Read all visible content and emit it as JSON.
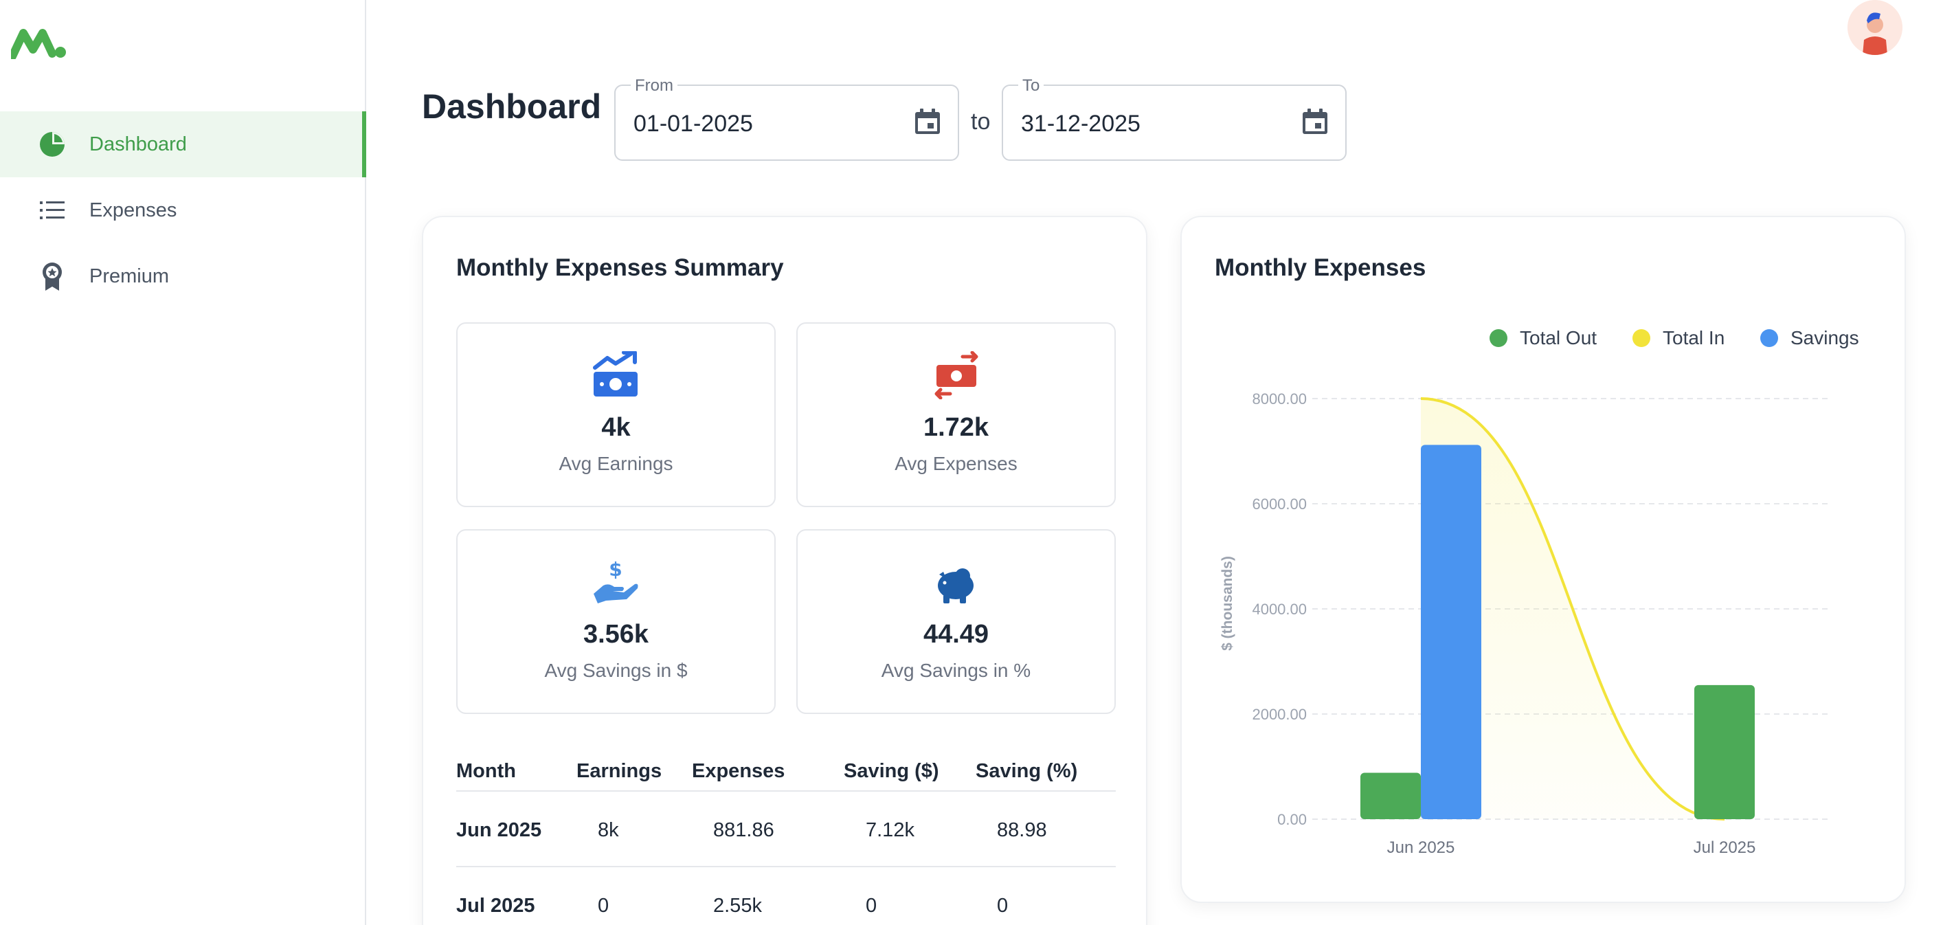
{
  "sidebar": {
    "items": [
      {
        "label": "Dashboard",
        "icon": "pie-chart-icon",
        "active": true
      },
      {
        "label": "Expenses",
        "icon": "list-icon",
        "active": false
      },
      {
        "label": "Premium",
        "icon": "award-icon",
        "active": false
      }
    ]
  },
  "header": {
    "title": "Dashboard",
    "from": {
      "label": "From",
      "value": "01-01-2025"
    },
    "to_text": "to",
    "to": {
      "label": "To",
      "value": "31-12-2025"
    }
  },
  "summary": {
    "title": "Monthly Expenses Summary",
    "stats": [
      {
        "value": "4k",
        "label": "Avg Earnings",
        "icon": "money-growth-icon",
        "color": "#2f6fe0"
      },
      {
        "value": "1.72k",
        "label": "Avg Expenses",
        "icon": "money-transfer-icon",
        "color": "#d9483b"
      },
      {
        "value": "3.56k",
        "label": "Avg Savings in $",
        "icon": "hand-dollar-icon",
        "color": "#4a90e2"
      },
      {
        "value": "44.49",
        "label": "Avg Savings in %",
        "icon": "piggy-bank-icon",
        "color": "#1f5ea8"
      }
    ],
    "table": {
      "headers": [
        "Month",
        "Earnings",
        "Expenses",
        "Saving ($)",
        "Saving (%)"
      ],
      "rows": [
        [
          "Jun 2025",
          "8k",
          "881.86",
          "7.12k",
          "88.98"
        ],
        [
          "Jul 2025",
          "0",
          "2.55k",
          "0",
          "0"
        ]
      ]
    }
  },
  "colors": {
    "accent": "#4caf50",
    "total_out": "#4caa57",
    "total_in": "#f2e33a",
    "savings": "#4a94f0"
  },
  "chart_data": {
    "type": "bar",
    "title": "Monthly Expenses",
    "ylabel": "$ (thousands)",
    "xlabel": "",
    "categories": [
      "Jun 2025",
      "Jul 2025"
    ],
    "series": [
      {
        "name": "Total Out",
        "type": "bar",
        "values": [
          881.86,
          2550
        ]
      },
      {
        "name": "Total In",
        "type": "area",
        "values": [
          8000,
          0
        ]
      },
      {
        "name": "Savings",
        "type": "bar",
        "values": [
          7120,
          0
        ]
      }
    ],
    "ylim": [
      0,
      8000
    ],
    "yticks": [
      "0.00",
      "2000.00",
      "4000.00",
      "6000.00",
      "8000.00"
    ],
    "grid": true,
    "legend": "top-right"
  }
}
